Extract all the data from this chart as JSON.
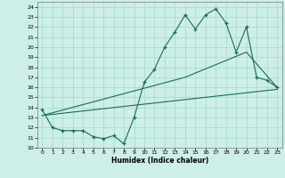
{
  "xlabel": "Humidex (Indice chaleur)",
  "bg_color": "#cdeee9",
  "grid_color": "#aaddcc",
  "line_color": "#1a6b5a",
  "xlim": [
    -0.5,
    23.5
  ],
  "ylim": [
    10,
    24.5
  ],
  "xticks": [
    0,
    1,
    2,
    3,
    4,
    5,
    6,
    7,
    8,
    9,
    10,
    11,
    12,
    13,
    14,
    15,
    16,
    17,
    18,
    19,
    20,
    21,
    22,
    23
  ],
  "yticks": [
    10,
    11,
    12,
    13,
    14,
    15,
    16,
    17,
    18,
    19,
    20,
    21,
    22,
    23,
    24
  ],
  "line1_x": [
    0,
    1,
    2,
    3,
    4,
    5,
    6,
    7,
    8,
    9,
    10,
    11,
    12,
    13,
    14,
    15,
    16,
    17,
    18,
    19,
    20,
    21,
    22,
    23
  ],
  "line1_y": [
    13.8,
    12.0,
    11.7,
    11.7,
    11.7,
    11.1,
    10.9,
    11.2,
    10.4,
    13.0,
    16.5,
    17.8,
    20.0,
    21.5,
    23.2,
    21.8,
    23.2,
    23.8,
    22.4,
    19.5,
    22.0,
    17.0,
    16.7,
    16.0
  ],
  "line2_x": [
    0,
    23
  ],
  "line2_y": [
    13.2,
    15.8
  ],
  "line3_x": [
    0,
    14,
    20,
    23
  ],
  "line3_y": [
    13.2,
    17.0,
    19.5,
    16.0
  ]
}
